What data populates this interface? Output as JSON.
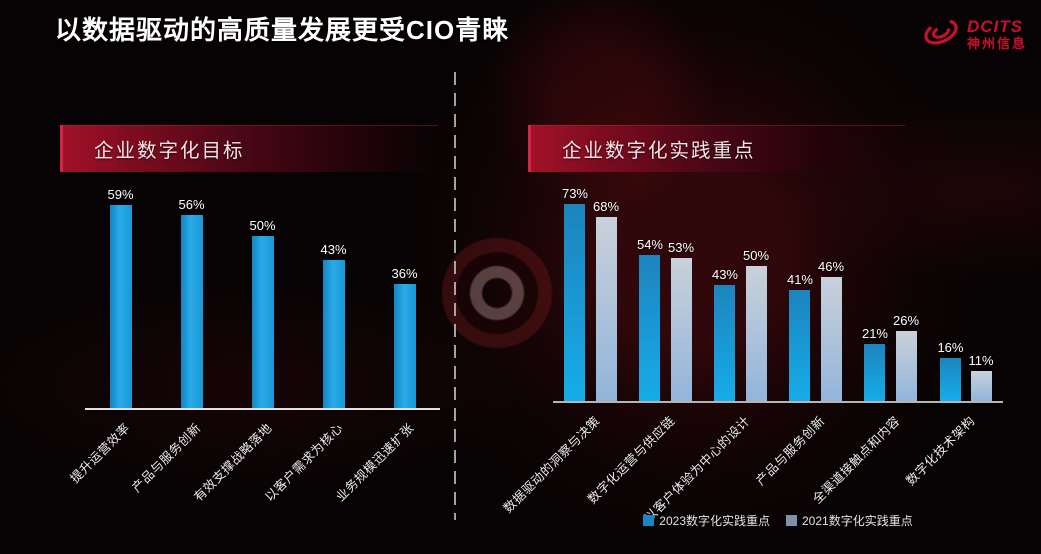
{
  "title": "以数据驱动的高质量发展更受CIO青睐",
  "logo": {
    "brand": "DCITS",
    "brand_cn": "神州信息",
    "color": "#C8102E"
  },
  "chart_data": [
    {
      "type": "bar",
      "title": "企业数字化目标",
      "categories": [
        "提升运营效率",
        "产品与服务创新",
        "有效支撑战略落地",
        "以客户需求为核心",
        "业务规模迅速扩张"
      ],
      "values": [
        59,
        56,
        50,
        43,
        36
      ],
      "unit": "%",
      "ylim": [
        0,
        70
      ],
      "grid": false,
      "data_labels": true,
      "bar_color": "#1D9FE0",
      "legend_position": "none"
    },
    {
      "type": "bar",
      "title": "企业数字化实践重点",
      "categories": [
        "数据驱动的洞察与决策",
        "数字化运营与供应链",
        "以客户体验为中心的设计",
        "产品与服务创新",
        "全渠道接触点和内容",
        "数字化技术架构"
      ],
      "series": [
        {
          "name": "2023数字化实践重点",
          "values": [
            73,
            54,
            43,
            41,
            21,
            16
          ],
          "color": "#18A0E0",
          "legend_color": "#1787C5"
        },
        {
          "name": "2021数字化实践重点",
          "values": [
            68,
            53,
            50,
            46,
            26,
            11
          ],
          "color": "#A9BDD4",
          "legend_color": "#7E92A7"
        }
      ],
      "unit": "%",
      "ylim": [
        0,
        80
      ],
      "grid": false,
      "data_labels": true,
      "legend_position": "bottom"
    }
  ]
}
